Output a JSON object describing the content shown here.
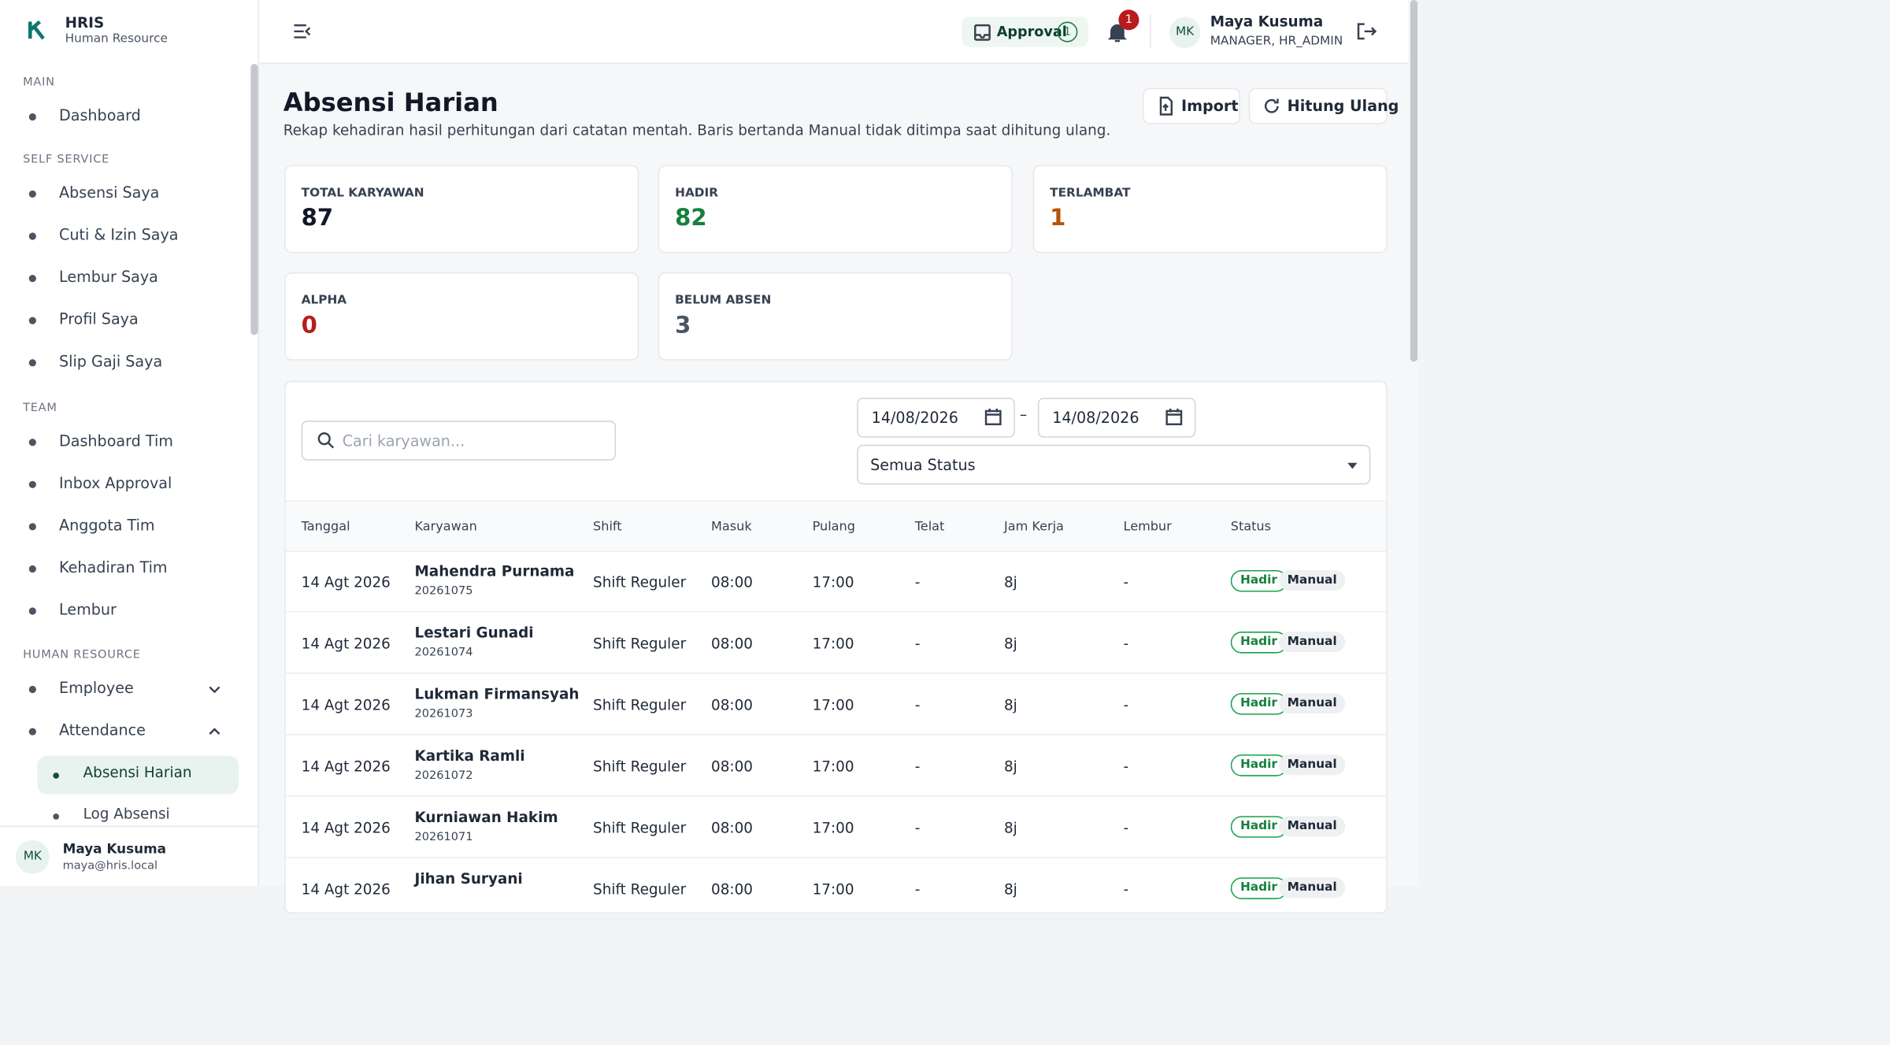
{
  "brand": {
    "name": "HRIS",
    "subtitle": "Human Resource"
  },
  "sidebar": {
    "sections": [
      {
        "title": "MAIN",
        "items": [
          "Dashboard"
        ]
      },
      {
        "title": "SELF SERVICE",
        "items": [
          "Absensi Saya",
          "Cuti & Izin Saya",
          "Lembur Saya",
          "Profil Saya",
          "Slip Gaji Saya"
        ]
      },
      {
        "title": "TEAM",
        "items": [
          "Dashboard Tim",
          "Inbox Approval",
          "Anggota Tim",
          "Kehadiran Tim",
          "Lembur"
        ]
      },
      {
        "title": "HUMAN RESOURCE",
        "items": [
          "Employee",
          "Attendance"
        ]
      }
    ],
    "subitems": [
      "Absensi Harian",
      "Log Absensi"
    ],
    "user": {
      "initials": "MK",
      "name": "Maya Kusuma",
      "email": "maya@hris.local"
    }
  },
  "topbar": {
    "approval": "Approval",
    "approval_count": 1,
    "notifications": 1,
    "user": {
      "initials": "MK",
      "name": "Maya Kusuma",
      "role": "MANAGER, HR_ADMIN"
    }
  },
  "page": {
    "title": "Absensi Harian",
    "description": "Rekap kehadiran hasil perhitungan dari catatan mentah. Baris bertanda Manual tidak ditimpa saat dihitung ulang.",
    "actions": [
      "Import",
      "Hitung Ulang"
    ]
  },
  "stats": [
    {
      "label": "TOTAL KARYAWAN",
      "value": 87
    },
    {
      "label": "HADIR",
      "value": 82
    },
    {
      "label": "TERLAMBAT",
      "value": 1
    },
    {
      "label": "ALPHA",
      "value": 0
    },
    {
      "label": "BELUM ABSEN",
      "value": 3
    }
  ],
  "filters": {
    "search_placeholder": "Cari karyawan...",
    "date_from": "14/08/2026",
    "date_separator": "–",
    "date_to": "14/08/2026",
    "status": "Semua Status"
  },
  "table": {
    "columns": [
      "Tanggal",
      "Karyawan",
      "Shift",
      "Masuk",
      "Pulang",
      "Telat",
      "Jam Kerja",
      "Lembur",
      "Status"
    ],
    "rows": [
      {
        "date": "14 Agt 2026",
        "name": "Mahendra Purnama",
        "id": "20261075",
        "shift": "Shift Reguler",
        "in": "08:00",
        "out": "17:00",
        "late": "-",
        "hours": "8j",
        "overtime": "-",
        "status": "Hadir",
        "tag": "Manual"
      },
      {
        "date": "14 Agt 2026",
        "name": "Lestari Gunadi",
        "id": "20261074",
        "shift": "Shift Reguler",
        "in": "08:00",
        "out": "17:00",
        "late": "-",
        "hours": "8j",
        "overtime": "-",
        "status": "Hadir",
        "tag": "Manual"
      },
      {
        "date": "14 Agt 2026",
        "name": "Lukman Firmansyah",
        "id": "20261073",
        "shift": "Shift Reguler",
        "in": "08:00",
        "out": "17:00",
        "late": "-",
        "hours": "8j",
        "overtime": "-",
        "status": "Hadir",
        "tag": "Manual"
      },
      {
        "date": "14 Agt 2026",
        "name": "Kartika Ramli",
        "id": "20261072",
        "shift": "Shift Reguler",
        "in": "08:00",
        "out": "17:00",
        "late": "-",
        "hours": "8j",
        "overtime": "-",
        "status": "Hadir",
        "tag": "Manual"
      },
      {
        "date": "14 Agt 2026",
        "name": "Kurniawan Hakim",
        "id": "20261071",
        "shift": "Shift Reguler",
        "in": "08:00",
        "out": "17:00",
        "late": "-",
        "hours": "8j",
        "overtime": "-",
        "status": "Hadir",
        "tag": "Manual"
      },
      {
        "date": "14 Agt 2026",
        "name": "Jihan Suryani",
        "shift": "Shift Reguler",
        "in": "08:00",
        "out": "17:00",
        "late": "-",
        "hours": "8j",
        "overtime": "-",
        "status": "Hadir",
        "tag": "Manual"
      }
    ]
  }
}
